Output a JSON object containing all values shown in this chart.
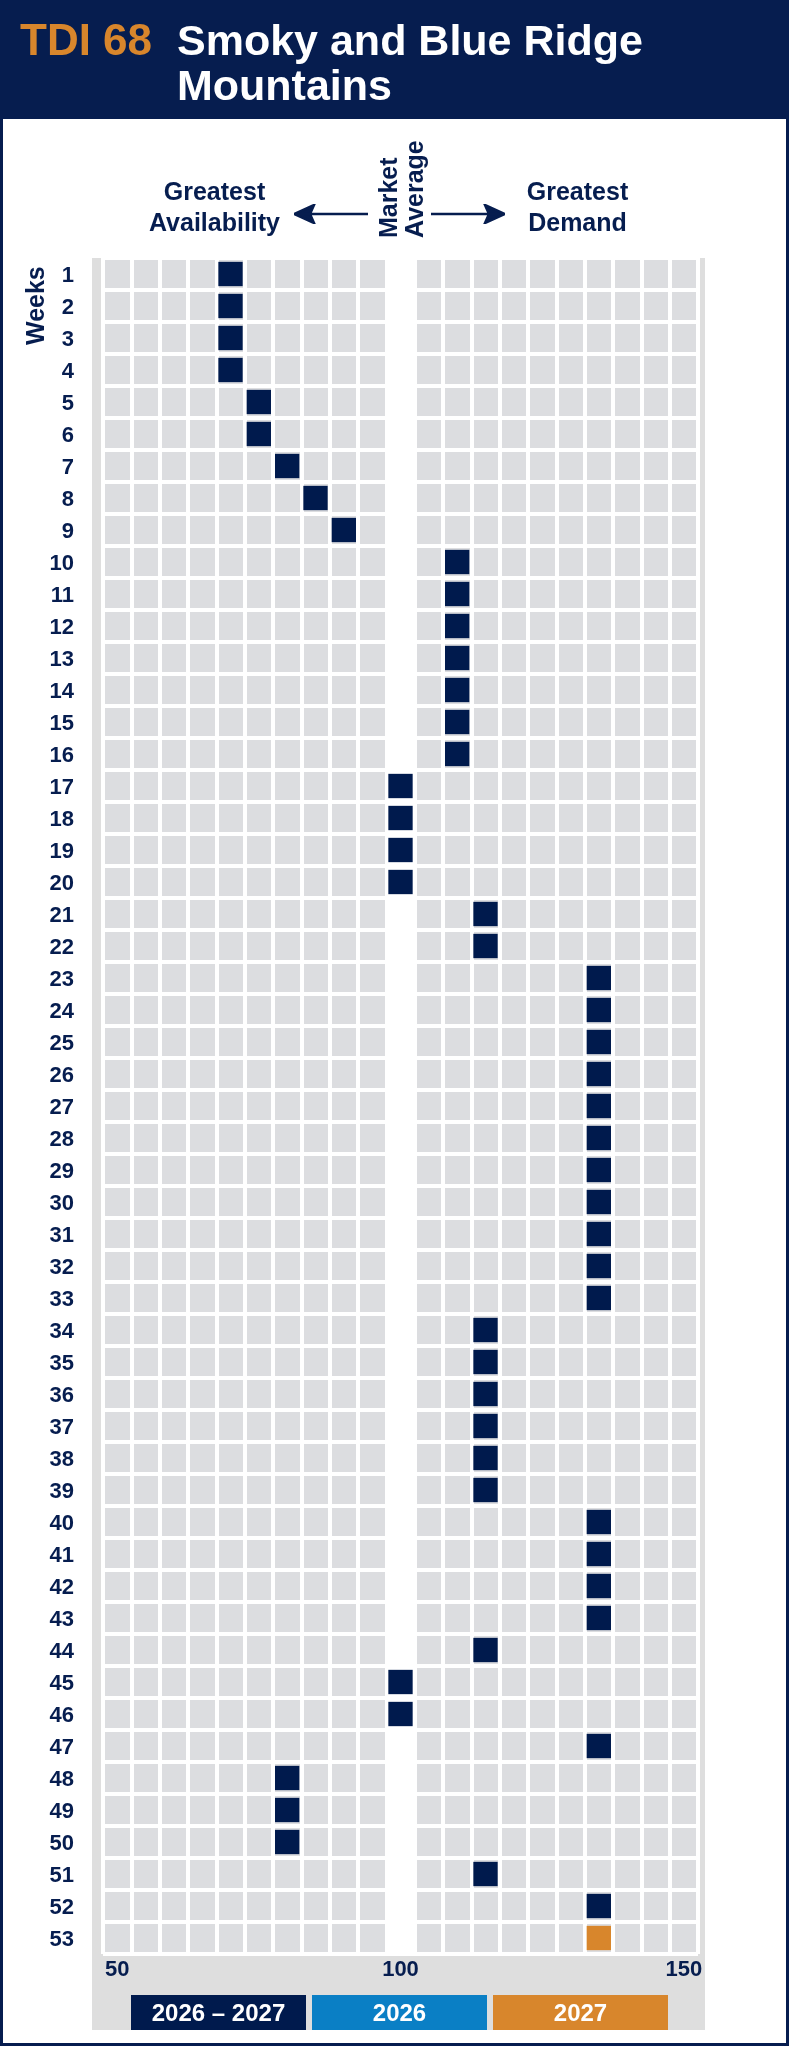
{
  "chart_data": {
    "type": "scatter",
    "title": "TDI 68",
    "subtitle": "Smoky and Blue Ridge Mountains",
    "ylabel": "Weeks",
    "annotations": [
      "Greatest Availability",
      "Greatest Demand"
    ],
    "xlim": [
      47.5,
      152.5
    ],
    "xticks": [
      {
        "value": 47.5,
        "label": null
      },
      50,
      {
        "value": 52.5,
        "label": null
      },
      {
        "value": 57.5,
        "label": null
      },
      {
        "value": 62.5,
        "label": null
      },
      {
        "value": 67.5,
        "label": null
      },
      {
        "value": 72.5,
        "label": null
      },
      {
        "value": 77.5,
        "label": null
      },
      {
        "value": 82.5,
        "label": null
      },
      {
        "value": 87.5,
        "label": null
      },
      {
        "value": 92.5,
        "label": null
      },
      {
        "value": 97.5,
        "label": null
      },
      100,
      {
        "value": 102.5,
        "label": null
      },
      {
        "value": 107.5,
        "label": null
      },
      {
        "value": 112.5,
        "label": null
      },
      {
        "value": 117.5,
        "label": null
      },
      {
        "value": 122.5,
        "label": null
      },
      {
        "value": 127.5,
        "label": null
      },
      {
        "value": 132.5,
        "label": null
      },
      {
        "value": 137.5,
        "label": null
      },
      {
        "value": 142.5,
        "label": null
      },
      {
        "value": 147.5,
        "label": null
      },
      150,
      {
        "value": 152.5,
        "label": null
      }
    ],
    "ylim": [
      53.5,
      0.5
    ],
    "yticks": [
      {
        "value": 0.5,
        "label": null
      },
      1,
      {
        "value": 1.5,
        "label": null
      },
      2,
      {
        "value": 2.5,
        "label": null
      },
      3,
      {
        "value": 3.5,
        "label": null
      },
      4,
      {
        "value": 4.5,
        "label": null
      },
      5,
      {
        "value": 5.5,
        "label": null
      },
      6,
      {
        "value": 6.5,
        "label": null
      },
      7,
      {
        "value": 7.5,
        "label": null
      },
      8,
      {
        "value": 8.5,
        "label": null
      },
      9,
      {
        "value": 9.5,
        "label": null
      },
      10,
      {
        "value": 10.5,
        "label": null
      },
      11,
      {
        "value": 11.5,
        "label": null
      },
      12,
      {
        "value": 12.5,
        "label": null
      },
      13,
      {
        "value": 13.5,
        "label": null
      },
      14,
      {
        "value": 14.5,
        "label": null
      },
      15,
      {
        "value": 15.5,
        "label": null
      },
      16,
      {
        "value": 16.5,
        "label": null
      },
      17,
      {
        "value": 17.5,
        "label": null
      },
      18,
      {
        "value": 18.5,
        "label": null
      },
      19,
      {
        "value": 19.5,
        "label": null
      },
      20,
      {
        "value": 20.5,
        "label": null
      },
      21,
      {
        "value": 21.5,
        "label": null
      },
      22,
      {
        "value": 22.5,
        "label": null
      },
      23,
      {
        "value": 23.5,
        "label": null
      },
      24,
      {
        "value": 24.5,
        "label": null
      },
      25,
      {
        "value": 25.5,
        "label": null
      },
      26,
      {
        "value": 26.5,
        "label": null
      },
      27,
      {
        "value": 27.5,
        "label": null
      },
      28,
      {
        "value": 28.5,
        "label": null
      },
      29,
      {
        "value": 29.5,
        "label": null
      },
      30,
      {
        "value": 30.5,
        "label": null
      },
      31,
      {
        "value": 31.5,
        "label": null
      },
      32,
      {
        "value": 32.5,
        "label": null
      },
      33,
      {
        "value": 33.5,
        "label": null
      },
      34,
      {
        "value": 34.5,
        "label": null
      },
      35,
      {
        "value": 35.5,
        "label": null
      },
      36,
      {
        "value": 36.5,
        "label": null
      },
      37,
      {
        "value": 37.5,
        "label": null
      },
      38,
      {
        "value": 38.5,
        "label": null
      },
      39,
      {
        "value": 39.5,
        "label": null
      },
      40,
      {
        "value": 40.5,
        "label": null
      },
      41,
      {
        "value": 41.5,
        "label": null
      },
      42,
      {
        "value": 42.5,
        "label": null
      },
      43,
      {
        "value": 43.5,
        "label": null
      },
      44,
      {
        "value": 44.5,
        "label": null
      },
      45,
      {
        "value": 45.5,
        "label": null
      },
      46,
      {
        "value": 46.5,
        "label": null
      },
      47,
      {
        "value": 47.5,
        "label": null
      },
      48,
      {
        "value": 48.5,
        "label": null
      },
      49,
      {
        "value": 49.5,
        "label": null
      },
      50,
      {
        "value": 50.5,
        "label": null
      },
      51,
      {
        "value": 51.5,
        "label": null
      },
      52,
      {
        "value": 52.5,
        "label": null
      },
      53,
      {
        "value": 53.5,
        "label": null
      }
    ],
    "series": [
      {
        "name": "2026 – 2027",
        "color": "#001a4d",
        "x": [
          70,
          70,
          70,
          70,
          75,
          75,
          80,
          85,
          90,
          110,
          110,
          110,
          110,
          110,
          110,
          110,
          100,
          100,
          100,
          100,
          115,
          115,
          135,
          135,
          135,
          135,
          135,
          135,
          135,
          135,
          135,
          135,
          135,
          115,
          115,
          115,
          115,
          115,
          115,
          135,
          135,
          135,
          135,
          115,
          100,
          100,
          135,
          80,
          80,
          80,
          115,
          135
        ],
        "values": [
          1,
          2,
          3,
          4,
          5,
          6,
          7,
          8,
          9,
          10,
          11,
          12,
          13,
          14,
          15,
          16,
          17,
          18,
          19,
          20,
          21,
          22,
          23,
          24,
          25,
          26,
          27,
          28,
          29,
          30,
          31,
          32,
          33,
          34,
          35,
          36,
          37,
          38,
          39,
          40,
          41,
          42,
          43,
          44,
          45,
          46,
          47,
          48,
          49,
          50,
          51,
          52
        ]
      },
      {
        "name": "2026",
        "color": "#0a7fc5"
      },
      {
        "name": "2027",
        "color": "#d8862c",
        "x": [
          135
        ],
        "values": [
          53
        ]
      }
    ],
    "bands": [
      {
        "axis": "x",
        "from": 97.5,
        "to": 102.5,
        "label": "Market Average",
        "color": "#ffffff"
      }
    ],
    "grid": true,
    "legend": "bottom",
    "marker": "square"
  }
}
